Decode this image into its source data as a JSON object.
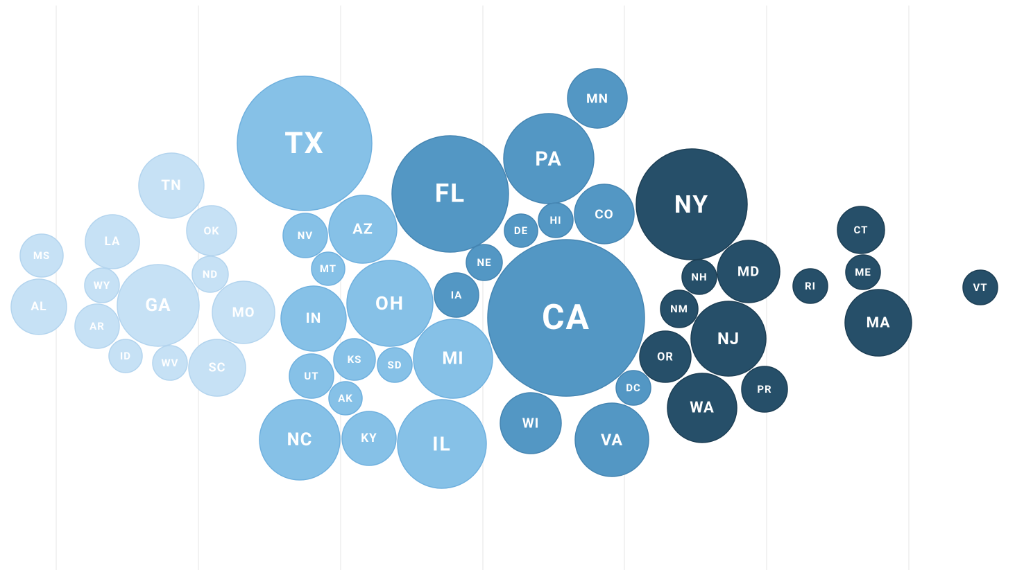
{
  "chart_data": {
    "type": "bubble",
    "xlim": [
      0,
      1463
    ],
    "ylim": [
      0,
      823
    ],
    "xticks": [
      81,
      286,
      491,
      696,
      900,
      1105,
      1310
    ],
    "grid": true,
    "groups": [
      {
        "color": "#c6e1f5",
        "stroke": "#b3d4ee",
        "labels": [
          "MS",
          "AL",
          "LA",
          "WY",
          "AR",
          "ID",
          "GA",
          "TN",
          "OK",
          "ND",
          "MO",
          "WV",
          "SC"
        ],
        "x": [
          60,
          56,
          162,
          147,
          140,
          181,
          228,
          247,
          305,
          303,
          351,
          245,
          313
        ],
        "y": [
          369,
          443,
          349,
          412,
          471,
          514,
          441,
          268,
          333,
          396,
          451,
          524,
          531
        ],
        "sizes": [
          31,
          40,
          39,
          25,
          32,
          24,
          59,
          47,
          36,
          26,
          45,
          25,
          41
        ]
      },
      {
        "color": "#86c1e7",
        "stroke": "#6fb0de",
        "labels": [
          "TX",
          "NV",
          "AZ",
          "MT",
          "IN",
          "OH",
          "UT",
          "KS",
          "SD",
          "AK",
          "NC",
          "KY",
          "IL",
          "MI"
        ],
        "x": [
          439,
          440,
          523,
          473,
          452,
          562,
          449,
          511,
          569,
          498,
          432,
          532,
          637,
          653
        ],
        "y": [
          207,
          340,
          331,
          388,
          460,
          438,
          543,
          519,
          527,
          575,
          635,
          633,
          641,
          518
        ],
        "sizes": [
          97,
          32,
          49,
          24,
          47,
          62,
          32,
          30,
          25,
          24,
          58,
          39,
          64,
          57
        ]
      },
      {
        "color": "#5397c4",
        "stroke": "#4585b2",
        "labels": [
          "FL",
          "MN",
          "PA",
          "DE",
          "HI",
          "CO",
          "NE",
          "IA",
          "CA",
          "WI",
          "VA",
          "DC"
        ],
        "x": [
          649,
          861,
          791,
          751,
          801,
          871,
          698,
          658,
          816,
          765,
          882,
          913
        ],
        "y": [
          280,
          142,
          229,
          333,
          318,
          309,
          379,
          426,
          459,
          611,
          635,
          560
        ],
        "sizes": [
          84,
          43,
          65,
          24,
          25,
          43,
          26,
          32,
          113,
          44,
          53,
          25
        ]
      },
      {
        "color": "#264f69",
        "stroke": "#1d3f55",
        "labels": [
          "NY",
          "NH",
          "MD",
          "NM",
          "NJ",
          "OR",
          "WA",
          "PR",
          "RI",
          "CT",
          "ME",
          "MA",
          "VT"
        ],
        "x": [
          997,
          1008,
          1079,
          979,
          1050,
          959,
          1012,
          1102,
          1168,
          1241,
          1244,
          1266,
          1413
        ],
        "y": [
          295,
          400,
          392,
          446,
          489,
          515,
          589,
          562,
          413,
          332,
          393,
          466,
          415
        ],
        "sizes": [
          80,
          25,
          45,
          27,
          54,
          37,
          50,
          33,
          25,
          34,
          25,
          48,
          25
        ]
      }
    ]
  }
}
